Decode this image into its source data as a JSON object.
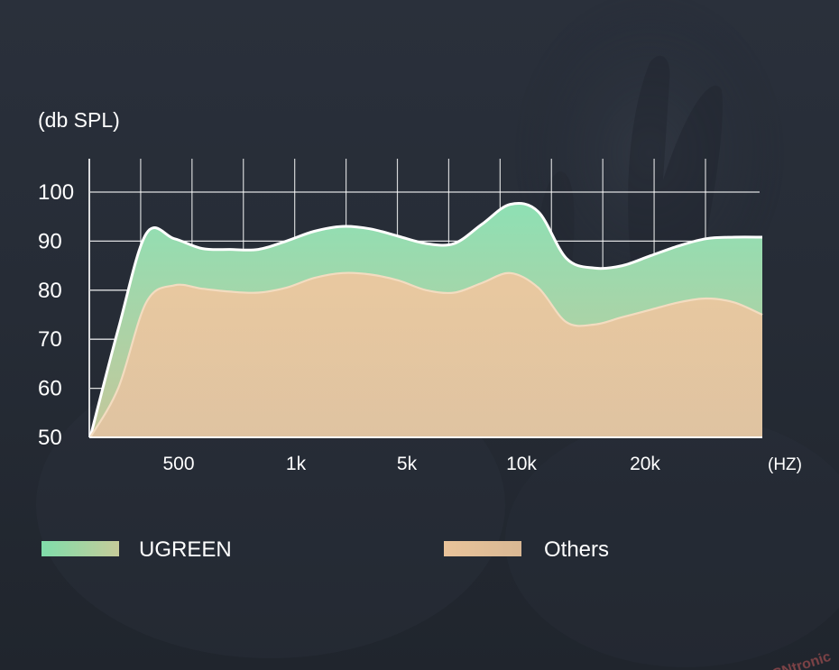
{
  "chart_data": {
    "type": "area",
    "ylabel": "(db SPL)",
    "xunit": "(HZ)",
    "ylim": [
      50,
      100
    ],
    "yticks": [
      100,
      90,
      80,
      70,
      60,
      50
    ],
    "xtick_labels": [
      "500",
      "1k",
      "5k",
      "10k",
      "20k"
    ],
    "grid": true,
    "legend_position": "bottom",
    "series": [
      {
        "name": "UGREEN",
        "color_top": "#8ee0b4",
        "color_bottom": "#c4c79a",
        "x": [
          0,
          0.5,
          1.0,
          1.5,
          2.0,
          2.5,
          3.0,
          3.5,
          4.0,
          4.5,
          5.0,
          5.5,
          6.0,
          6.5,
          7.0,
          7.5,
          8.0,
          8.5,
          9.0,
          9.5,
          10.0,
          10.5,
          11.0,
          11.5,
          12.0
        ],
        "values": [
          50,
          72,
          91.5,
          90.5,
          88.5,
          88.3,
          88.3,
          90,
          92,
          93,
          92.5,
          91,
          89.5,
          89.5,
          93.5,
          97.5,
          96,
          86.5,
          84.5,
          85,
          87,
          89,
          90.5,
          90.8,
          90.8
        ]
      },
      {
        "name": "Others",
        "color_top": "#ebc8a0",
        "color_bottom": "#e0c3a1",
        "x": [
          0,
          0.5,
          1.0,
          1.5,
          2.0,
          2.5,
          3.0,
          3.5,
          4.0,
          4.5,
          5.0,
          5.5,
          6.0,
          6.5,
          7.0,
          7.5,
          8.0,
          8.5,
          9.0,
          9.5,
          10.0,
          10.5,
          11.0,
          11.5,
          12.0
        ],
        "values": [
          50,
          60,
          77.5,
          81,
          80.3,
          79.7,
          79.5,
          80.5,
          82.5,
          83.5,
          83.2,
          82,
          80,
          79.5,
          81.5,
          83.5,
          80.5,
          73.5,
          73,
          74.5,
          76,
          77.5,
          78.3,
          77.5,
          75
        ]
      }
    ],
    "legend": [
      {
        "label": "UGREEN",
        "color_from": "#7fdcaa",
        "color_to": "#c6cc9a"
      },
      {
        "label": "Others",
        "color_from": "#e9c39a",
        "color_to": "#d9b894"
      }
    ]
  },
  "watermark": "CNtronic",
  "colors": {
    "background": "#272d38",
    "grid": "#ffffff",
    "text": "#ffffff"
  }
}
